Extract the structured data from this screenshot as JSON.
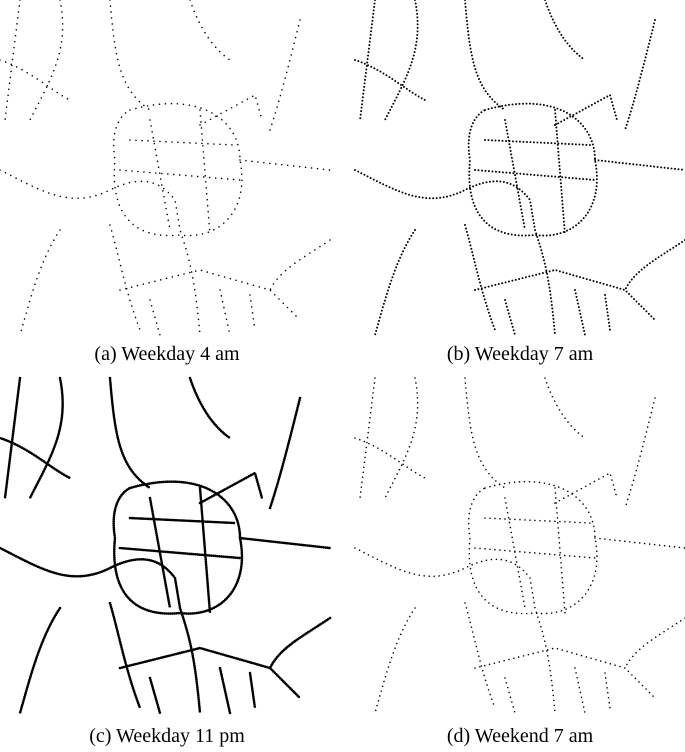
{
  "figure": {
    "panels": [
      {
        "caption": "(a) Weekday 4 am"
      },
      {
        "caption": "(b) Weekday 7 am"
      },
      {
        "caption": "(c) Weekday 11 pm"
      },
      {
        "caption": "(d) Weekend 7 am"
      }
    ]
  }
}
